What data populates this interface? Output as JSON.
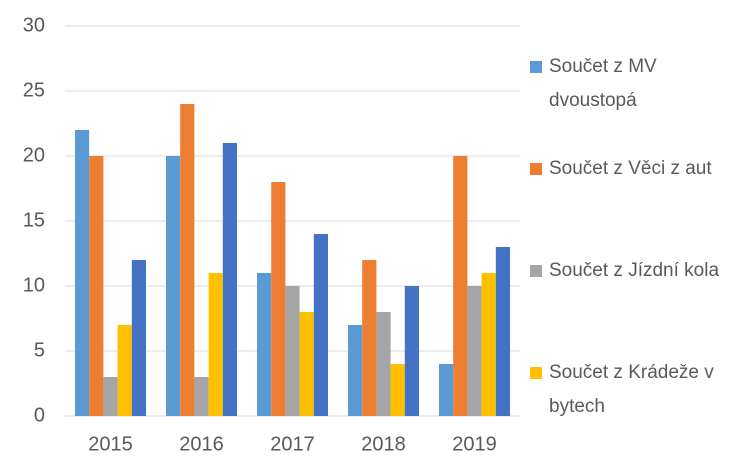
{
  "chart_data": {
    "type": "bar",
    "categories": [
      "2015",
      "2016",
      "2017",
      "2018",
      "2019"
    ],
    "series": [
      {
        "name": "Součet z MV dvoustopá",
        "color": "#5b9bd5",
        "values": [
          22,
          20,
          11,
          7,
          4
        ]
      },
      {
        "name": "Součet z Věci z aut",
        "color": "#ed7d31",
        "values": [
          20,
          24,
          18,
          12,
          20
        ]
      },
      {
        "name": "Součet z Jízdní kola",
        "color": "#a5a5a5",
        "values": [
          3,
          3,
          10,
          8,
          10
        ]
      },
      {
        "name": "Součet z Krádeže v bytech",
        "color": "#ffc000",
        "values": [
          7,
          11,
          8,
          4,
          11
        ]
      },
      {
        "color": "#4472c4",
        "values": [
          12,
          21,
          14,
          10,
          13
        ]
      }
    ],
    "ylim": [
      0,
      30
    ],
    "yticks": [
      0,
      5,
      10,
      15,
      20,
      25,
      30
    ],
    "grid": true,
    "legend": "right"
  }
}
